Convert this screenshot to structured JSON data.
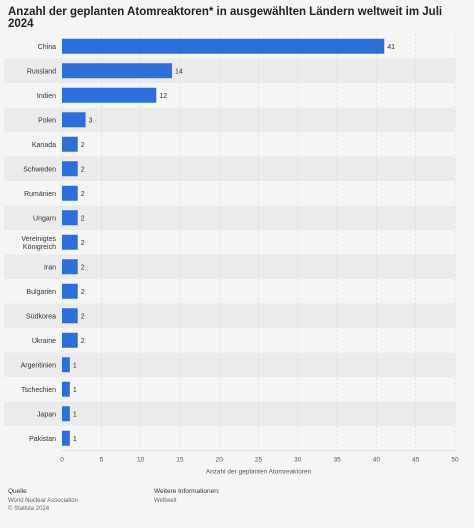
{
  "title": "Anzahl der geplanten Atomreaktoren* in ausgewählten Ländern weltweit im Juli 2024",
  "chart_data": {
    "type": "bar",
    "orientation": "horizontal",
    "categories": [
      "China",
      "Russland",
      "Indien",
      "Polen",
      "Kanada",
      "Schweden",
      "Rumänien",
      "Ungarn",
      "Vereinigtes Königreich",
      "Iran",
      "Bulgarien",
      "Südkorea",
      "Ukraine",
      "Argentinien",
      "Tschechien",
      "Japan",
      "Pakistan"
    ],
    "category_lines": [
      [
        "China"
      ],
      [
        "Russland"
      ],
      [
        "Indien"
      ],
      [
        "Polen"
      ],
      [
        "Kanada"
      ],
      [
        "Schweden"
      ],
      [
        "Rumänien"
      ],
      [
        "Ungarn"
      ],
      [
        "Vereinigtes",
        "Königreich"
      ],
      [
        "Iran"
      ],
      [
        "Bulgarien"
      ],
      [
        "Südkorea"
      ],
      [
        "Ukraine"
      ],
      [
        "Argentinien"
      ],
      [
        "Tschechien"
      ],
      [
        "Japan"
      ],
      [
        "Pakistan"
      ]
    ],
    "values": [
      41,
      14,
      12,
      3,
      2,
      2,
      2,
      2,
      2,
      2,
      2,
      2,
      2,
      1,
      1,
      1,
      1
    ],
    "xlabel": "Anzahl der geplanten Atomreaktoren",
    "xlim": [
      0,
      50
    ],
    "xticks": [
      0,
      5,
      10,
      15,
      20,
      25,
      30,
      35,
      40,
      45,
      50
    ],
    "grid": true,
    "bar_color": "#2a6fdb"
  },
  "footer": {
    "source_heading": "Quelle",
    "source_lines": [
      "World Nuclear Association",
      "© Statista 2024"
    ],
    "info_heading": "Weitere Informationen:",
    "info_lines": [
      "Weltweit"
    ]
  }
}
